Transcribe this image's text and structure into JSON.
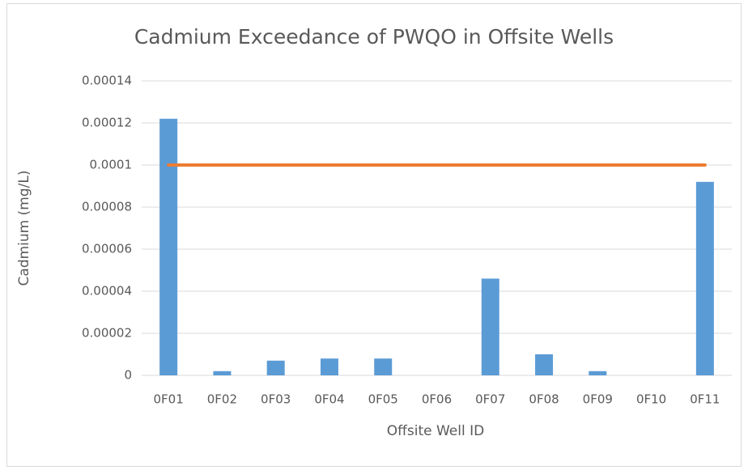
{
  "chart_data": {
    "type": "bar",
    "title": "Cadmium Exceedance of PWQO in Offsite Wells",
    "x_label": "Offsite Well ID",
    "y_label": "Cadmium (mg/L)",
    "categories": [
      "0F01",
      "0F02",
      "0F03",
      "0F04",
      "0F05",
      "0F06",
      "0F07",
      "0F08",
      "0F09",
      "0F10",
      "0F11"
    ],
    "series": [
      {
        "type": "bar",
        "color": "#5b9bd5",
        "values": [
          0.000122,
          2e-06,
          7e-06,
          8e-06,
          8e-06,
          0,
          4.6e-05,
          1e-05,
          2e-06,
          0,
          9.2e-05
        ]
      },
      {
        "type": "line",
        "color": "#ed7d31",
        "values": [
          0.0001,
          0.0001,
          0.0001,
          0.0001,
          0.0001,
          0.0001,
          0.0001,
          0.0001,
          0.0001,
          0.0001,
          0.0001
        ]
      }
    ],
    "ylim": [
      0,
      0.00014
    ],
    "yticks": [
      0,
      2e-05,
      4e-05,
      6e-05,
      8e-05,
      0.0001,
      0.00012,
      0.00014
    ],
    "grid": true
  }
}
